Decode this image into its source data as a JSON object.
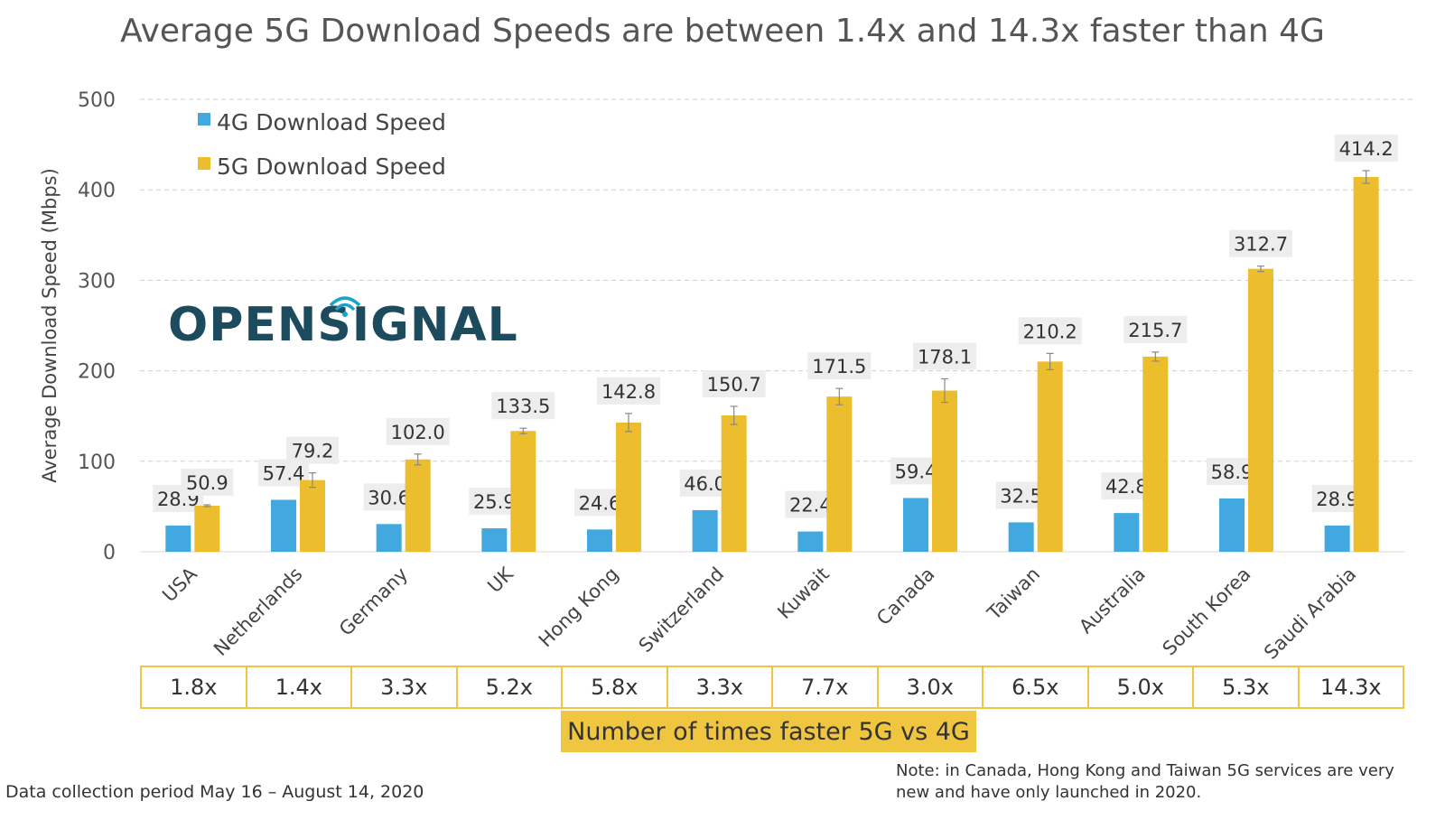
{
  "chart_data": {
    "type": "bar",
    "title": "Average 5G Download Speeds are between 1.4x and 14.3x faster than 4G",
    "ylabel": "Average Download Speed (Mbps)",
    "ylim": [
      0,
      500
    ],
    "yticks": [
      0,
      100,
      200,
      300,
      400,
      500
    ],
    "grid": true,
    "legend_position": "top-left",
    "categories": [
      "USA",
      "Netherlands",
      "Germany",
      "UK",
      "Hong Kong",
      "Switzerland",
      "Kuwait",
      "Canada",
      "Taiwan",
      "Australia",
      "South Korea",
      "Saudi Arabia"
    ],
    "series": [
      {
        "name": "4G Download Speed",
        "color": "#41a8e0",
        "values": [
          28.9,
          57.4,
          30.6,
          25.9,
          24.6,
          46.0,
          22.4,
          59.4,
          32.5,
          42.8,
          58.9,
          28.9
        ],
        "labels": [
          "28.9",
          "57.4",
          "30.6",
          "25.9",
          "24.6",
          "46.0",
          "22.4",
          "59.4",
          "32.5",
          "42.8",
          "58.9",
          "28.9"
        ]
      },
      {
        "name": "5G Download Speed",
        "color": "#ecbd2c",
        "values": [
          50.9,
          79.2,
          102.0,
          133.5,
          142.8,
          150.7,
          171.5,
          178.1,
          210.2,
          215.7,
          312.7,
          414.2
        ],
        "labels": [
          "50.9",
          "79.2",
          "102.0",
          "133.5",
          "142.8",
          "150.7",
          "171.5",
          "178.1",
          "210.2",
          "215.7",
          "312.7",
          "414.2"
        ],
        "error": [
          1,
          8,
          6,
          3,
          10,
          10,
          9,
          13,
          9,
          5,
          3,
          7
        ]
      }
    ],
    "factors": [
      "1.8x",
      "1.4x",
      "3.3x",
      "5.2x",
      "5.8x",
      "3.3x",
      "7.7x",
      "3.0x",
      "6.5x",
      "5.0x",
      "5.3x",
      "14.3x"
    ],
    "factor_caption": "Number of times faster 5G vs 4G"
  },
  "logo_text": "OPENSIGNAL",
  "notes": {
    "source": "Data collection period May 16 – August 14, 2020",
    "launch": "Note: in Canada, Hong Kong and Taiwan 5G services are very new and have only launched in 2020."
  }
}
